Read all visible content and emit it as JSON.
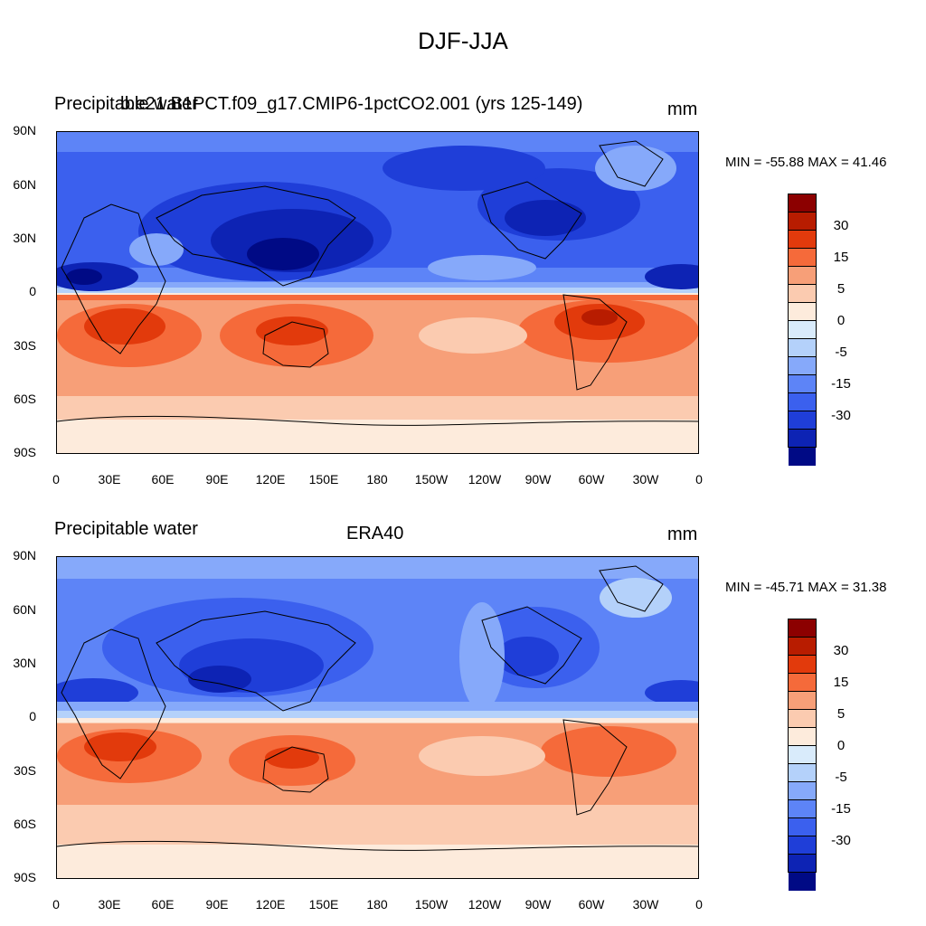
{
  "title": "DJF-JJA",
  "panels": [
    {
      "left_title": "Precipitable water",
      "center_title": "b.e21.B1PCT.f09_g17.CMIP6-1pctCO2.001 (yrs 125-149)",
      "units": "mm",
      "min_max": "MIN = -55.88 MAX =  41.46"
    },
    {
      "left_title": "Precipitable water",
      "center_title": "ERA40",
      "units": "mm",
      "min_max": "MIN = -45.71 MAX =  31.38"
    }
  ],
  "lat_labels": [
    "90N",
    "60N",
    "30N",
    "0",
    "30S",
    "60S",
    "90S"
  ],
  "lon_labels": [
    "0",
    "30E",
    "60E",
    "90E",
    "120E",
    "150E",
    "180",
    "150W",
    "120W",
    "90W",
    "60W",
    "30W",
    "0"
  ],
  "colorbar_labels": [
    "30",
    "15",
    "5",
    "0",
    "-5",
    "-15",
    "-30"
  ],
  "colorbar_colors": [
    "#8c0000",
    "#b81c00",
    "#e23a0c",
    "#f56a3a",
    "#f79f78",
    "#fbcbb0",
    "#fdebdc",
    "#d9ebfb",
    "#b4d1fa",
    "#86a9fa",
    "#5d84f7",
    "#3b60ee",
    "#1f3ed8",
    "#0d23b4",
    "#000a85"
  ],
  "chart_data": [
    {
      "type": "heatmap",
      "title": "DJF-JJA",
      "field": "Precipitable water",
      "case": "b.e21.B1PCT.f09_g17.CMIP6-1pctCO2.001 (yrs 125-149)",
      "units": "mm",
      "min": -55.88,
      "max": 41.46,
      "contour_levels": [
        -40,
        -30,
        -25,
        -20,
        -15,
        -10,
        -5,
        -2,
        0,
        2,
        5,
        10,
        15,
        20,
        30,
        40
      ]
    },
    {
      "type": "heatmap",
      "title": "DJF-JJA",
      "field": "Precipitable water",
      "case": "ERA40",
      "units": "mm",
      "min": -45.71,
      "max": 31.38,
      "contour_levels": [
        -40,
        -30,
        -25,
        -20,
        -15,
        -10,
        -5,
        -2,
        0,
        2,
        5,
        10,
        15,
        20,
        30,
        40
      ]
    }
  ]
}
